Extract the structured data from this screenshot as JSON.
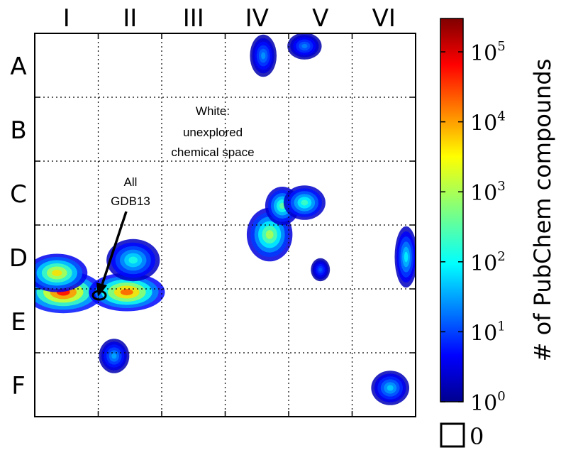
{
  "chart_data": {
    "type": "heatmap",
    "title": "",
    "columns": [
      "I",
      "II",
      "III",
      "IV",
      "V",
      "VI"
    ],
    "rows": [
      "A",
      "B",
      "C",
      "D",
      "E",
      "F"
    ],
    "grid": true,
    "grid_style": "dotted",
    "colorbar": {
      "label": "# of PubChem compounds",
      "scale": "log",
      "range": [
        1,
        300000
      ],
      "ticks": [
        {
          "value": 1,
          "base": "10",
          "exp": "0"
        },
        {
          "value": 10,
          "base": "10",
          "exp": "1"
        },
        {
          "value": 100,
          "base": "10",
          "exp": "2"
        },
        {
          "value": 1000,
          "base": "10",
          "exp": "3"
        },
        {
          "value": 10000,
          "base": "10",
          "exp": "4"
        },
        {
          "value": 100000,
          "base": "10",
          "exp": "5"
        }
      ],
      "colormap": "jet",
      "zero_label": "0",
      "zero_color": "#ffffff"
    },
    "annotations": [
      {
        "text_lines": [
          "White:",
          "unexplored",
          "chemical space"
        ]
      },
      {
        "text_lines": [
          "All",
          "GDB13"
        ],
        "arrow": true,
        "target": "E / I-II boundary"
      }
    ],
    "clusters": [
      {
        "cell": "E-I",
        "level": 4.8
      },
      {
        "cell": "E-II",
        "level": 4.3
      },
      {
        "cell": "D-I",
        "level": 3.6
      },
      {
        "cell": "D-II",
        "level": 2.2
      },
      {
        "cell": "D-IV",
        "level": 3.0
      },
      {
        "cell": "C-IV",
        "level": 2.6
      },
      {
        "cell": "C-V",
        "level": 2.4
      },
      {
        "cell": "D-VI",
        "level": 2.0
      },
      {
        "cell": "F-VI",
        "level": 1.8
      },
      {
        "cell": "A-IV",
        "level": 1.5
      },
      {
        "cell": "A-V",
        "level": 1.4
      },
      {
        "cell": "F-II",
        "level": 1.6
      },
      {
        "cell": "D-V",
        "level": 1.2
      }
    ]
  }
}
